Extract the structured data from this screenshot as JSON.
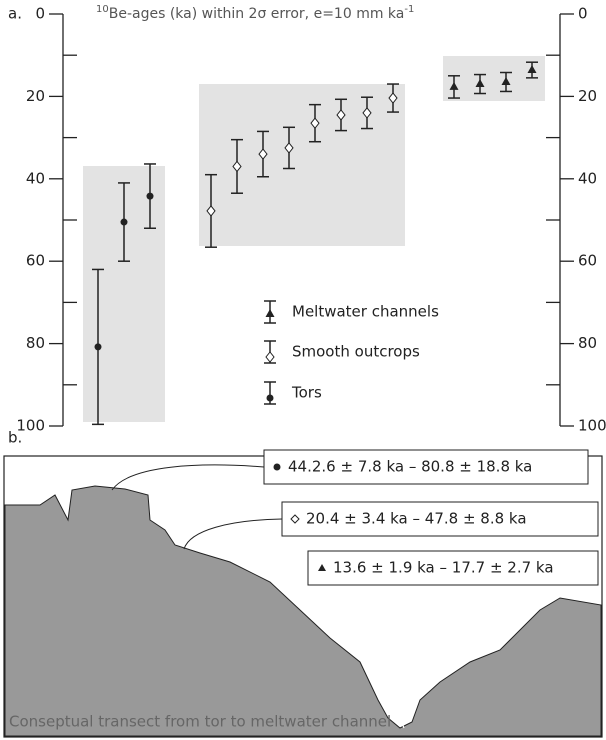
{
  "panel_labels": [
    "a.",
    "b."
  ],
  "chart_data": {
    "type": "errorbar",
    "title_prefix": "10",
    "title": "Be-ages (ka) within 2σ error, e=10 mm ka",
    "title_suffix": "-1",
    "ylim": [
      0,
      100
    ],
    "y_inverted": true,
    "yticks": [
      0,
      20,
      40,
      60,
      80,
      100
    ],
    "minor_yticks": [
      10,
      30,
      50,
      70,
      90
    ],
    "series": [
      {
        "name": "Tors",
        "marker": "circle",
        "color": "#222",
        "values": [
          80.8,
          50.5,
          44.2
        ],
        "errors": [
          18.8,
          9.5,
          7.8
        ]
      },
      {
        "name": "Smooth outcrops",
        "marker": "diamond",
        "color": "#222",
        "values": [
          47.8,
          37,
          34,
          32.5,
          26.5,
          24.5,
          24,
          20.4
        ],
        "errors": [
          8.8,
          6.5,
          5.5,
          5,
          4.5,
          3.8,
          3.8,
          3.4
        ]
      },
      {
        "name": "Meltwater channels",
        "marker": "triangle",
        "color": "#222",
        "values": [
          17.7,
          17,
          16.5,
          13.6
        ],
        "errors": [
          2.7,
          2.3,
          2.3,
          1.9
        ]
      }
    ]
  },
  "diagram": {
    "range_labels": [
      "44.2.6 ± 7.8 ka – 80.8 ± 18.8 ka",
      "20.4 ± 3.4 ka – 47.8 ± 8.8  ka",
      "13.6 ± 1.9 ka – 17.7 ± 2.7 ka"
    ],
    "caption": "Conseptual transect from tor to meltwater channel"
  }
}
